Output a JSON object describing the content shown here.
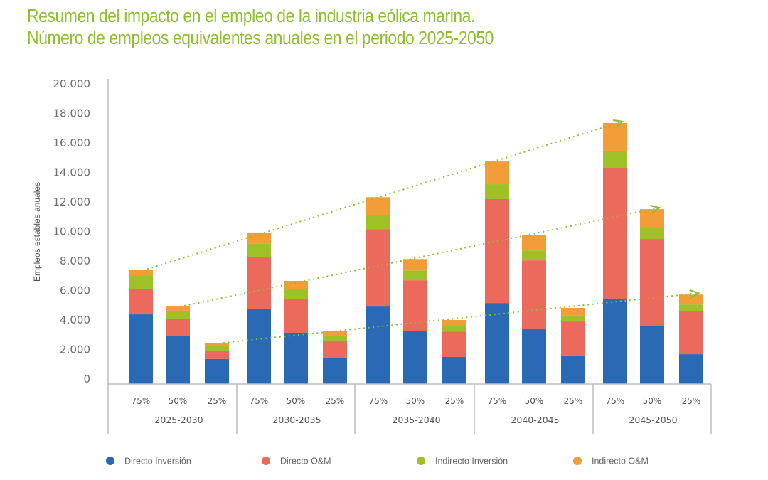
{
  "title": {
    "line1": "Resumen del impacto en el empleo de la industria eólica marina.",
    "line2": "Número de empleos equivalentes anuales en el periodo 2025-2050"
  },
  "colors": {
    "title": "#8DBF2E",
    "directo_inversion": "#2A6AB5",
    "directo_om": "#EC6A5C",
    "indirecto_inversion": "#9DC127",
    "indirecto_om": "#F29D38",
    "trend": "#8DBF2E",
    "axis": "#bdbdbd"
  },
  "chart_data": {
    "type": "bar",
    "stacked": true,
    "title": "Resumen del impacto en el empleo de la industria eólica marina. Número de empleos equivalentes anuales en el periodo 2025-2050",
    "xlabel": "",
    "ylabel": "Empleos estables anuales",
    "ylim": [
      0,
      20000
    ],
    "yticks": [
      0,
      2000,
      4000,
      6000,
      8000,
      10000,
      12000,
      14000,
      16000,
      18000,
      20000
    ],
    "ytick_labels": [
      "0",
      "2.000",
      "4.000",
      "6.000",
      "8.000",
      "10.000",
      "12.000",
      "14.000",
      "16.000",
      "18.000",
      "20.000"
    ],
    "grid": false,
    "legend_position": "bottom",
    "groups": [
      "2025-2030",
      "2030-2035",
      "2035-2040",
      "2040-2045",
      "2045-2050"
    ],
    "scenarios": [
      "75%",
      "50%",
      "25%"
    ],
    "categories": [
      "2025-2030 75%",
      "2025-2030 50%",
      "2025-2030 25%",
      "2030-2035 75%",
      "2030-2035 50%",
      "2030-2035 25%",
      "2035-2040 75%",
      "2035-2040 50%",
      "2035-2040 25%",
      "2040-2045 75%",
      "2040-2045 50%",
      "2040-2045 25%",
      "2045-2050 75%",
      "2045-2050 50%",
      "2045-2050 25%"
    ],
    "series": [
      {
        "name": "Directo Inversión",
        "key": "directo_inversion",
        "values": [
          4720,
          3230,
          1690,
          5110,
          3470,
          1780,
          5250,
          3610,
          1830,
          5490,
          3710,
          1930,
          5780,
          3950,
          2020
        ]
      },
      {
        "name": "Directo O&M",
        "key": "directo_om",
        "values": [
          1730,
          1160,
          530,
          3470,
          2270,
          1110,
          5250,
          3420,
          1730,
          7040,
          4670,
          2310,
          8870,
          5880,
          2940
        ]
      },
      {
        "name": "Indirecto Inversión",
        "key": "indirecto_inversion",
        "values": [
          920,
          580,
          340,
          920,
          670,
          430,
          960,
          670,
          390,
          1010,
          670,
          390,
          1160,
          770,
          430
        ]
      },
      {
        "name": "Indirecto O&M",
        "key": "indirecto_om",
        "values": [
          390,
          290,
          190,
          770,
          580,
          290,
          1200,
          770,
          390,
          1540,
          1060,
          530,
          1880,
          1250,
          670
        ]
      }
    ],
    "annotations": [
      {
        "type": "trend-arrow",
        "scenario": "75%",
        "from": "2025-2030 75%",
        "to": "2045-2050 75%"
      },
      {
        "type": "trend-arrow",
        "scenario": "50%",
        "from": "2025-2030 50%",
        "to": "2045-2050 50%"
      },
      {
        "type": "trend-arrow",
        "scenario": "25%",
        "from": "2025-2030 25%",
        "to": "2045-2050 25%"
      }
    ]
  }
}
